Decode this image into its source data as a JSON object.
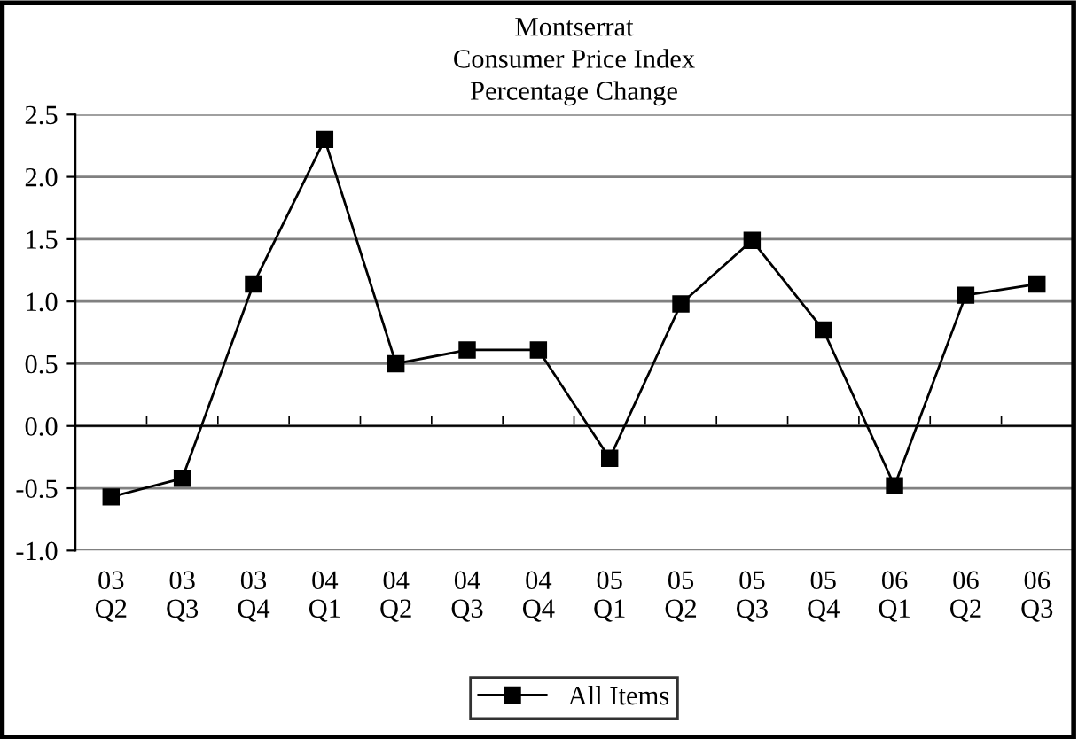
{
  "chart_data": {
    "type": "line",
    "title": "Montserrat\nConsumer Price Index\nPercentage Change",
    "categories": [
      "03\nQ2",
      "03\nQ3",
      "03\nQ4",
      "04\nQ1",
      "04\nQ2",
      "04\nQ3",
      "04\nQ4",
      "05\nQ1",
      "05\nQ2",
      "05\nQ3",
      "05\nQ4",
      "06\nQ1",
      "06\nQ2",
      "06\nQ3"
    ],
    "series": [
      {
        "name": "All Items",
        "color": "#000000",
        "values": [
          -0.57,
          -0.42,
          1.14,
          2.3,
          0.5,
          0.61,
          0.61,
          -0.26,
          0.98,
          1.49,
          0.77,
          -0.48,
          1.05,
          1.14
        ]
      }
    ],
    "ylim": [
      -1.0,
      2.5
    ],
    "yticks": [
      {
        "value": -1.0,
        "label": "-1.0"
      },
      {
        "value": -0.5,
        "label": "-0.5"
      },
      {
        "value": 0.0,
        "label": "0.0"
      },
      {
        "value": 0.5,
        "label": "0.5"
      },
      {
        "value": 1.0,
        "label": "1.0"
      },
      {
        "value": 1.5,
        "label": "1.5"
      },
      {
        "value": 2.0,
        "label": "2.0"
      },
      {
        "value": 2.5,
        "label": "2.5"
      }
    ],
    "grid": "y",
    "legend": "bottom",
    "marker": "square",
    "line_style": "solid"
  }
}
